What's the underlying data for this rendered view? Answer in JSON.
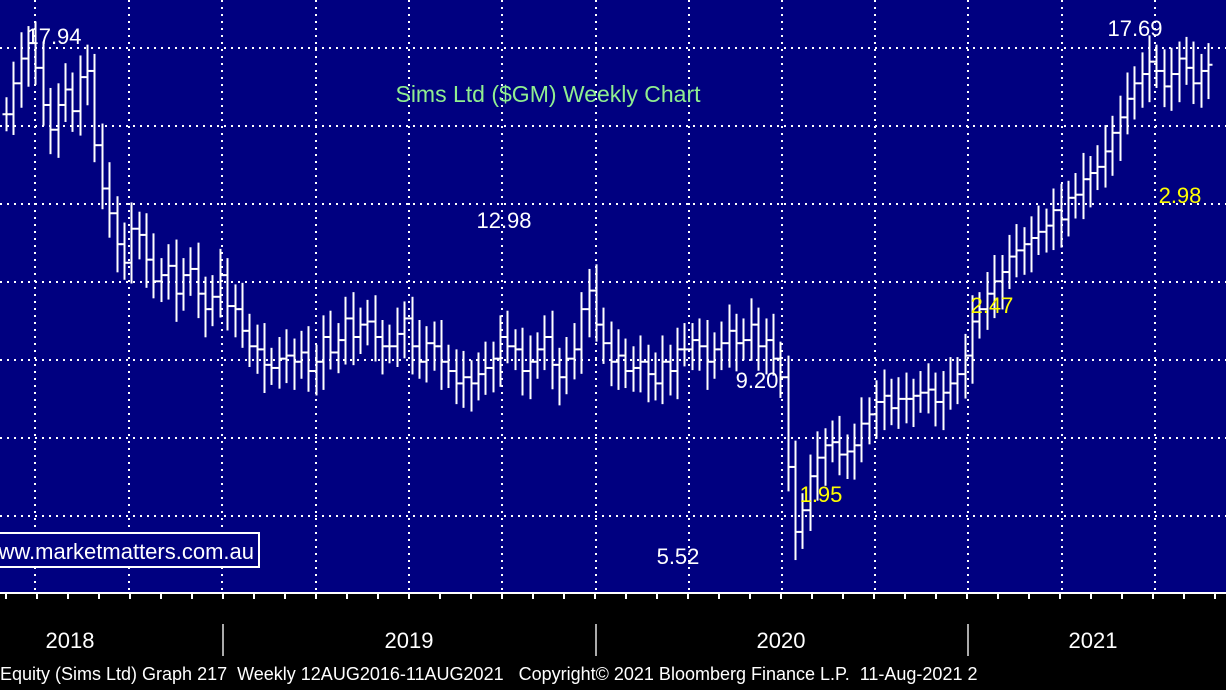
{
  "chart_data": {
    "type": "bar",
    "title": "Sims Ltd ($GM) Weekly Chart",
    "watermark": "www.marketmatters.com.au",
    "x_axis_labels": [
      "2018",
      "2019",
      "2020",
      "2021"
    ],
    "grid": true,
    "annotations": [
      {
        "text": "17.94",
        "color": "#ffffff"
      },
      {
        "text": "12.98",
        "color": "#ffffff"
      },
      {
        "text": "9.20",
        "color": "#ffffff"
      },
      {
        "text": "5.52",
        "color": "#ffffff"
      },
      {
        "text": "1.95",
        "color": "#ffff00"
      },
      {
        "text": "2.47",
        "color": "#ffff00"
      },
      {
        "text": "17.69",
        "color": "#ffffff"
      },
      {
        "text": "2.98",
        "color": "#ffff00"
      }
    ],
    "series": [
      {
        "values": [
          15.6,
          16.6,
          17.4,
          17.9,
          17.1,
          15.9,
          15.1,
          15.9,
          16.4,
          15.7,
          16.8,
          17.0,
          14.6,
          13.2,
          12.4,
          11.4,
          10.8,
          11.9,
          11.7,
          10.9,
          10.2,
          10.4,
          10.7,
          9.8,
          10.4,
          10.6,
          9.8,
          9.3,
          9.7,
          10.4,
          9.4,
          9.3,
          8.6,
          8.1,
          8.0,
          7.5,
          7.4,
          7.7,
          7.8,
          7.6,
          7.9,
          7.3,
          7.6,
          8.4,
          7.9,
          8.3,
          9.0,
          8.4,
          8.8,
          8.9,
          8.4,
          8.1,
          8.1,
          8.5,
          9.0,
          8.1,
          7.6,
          8.2,
          8.1,
          7.6,
          7.3,
          6.9,
          7.1,
          6.9,
          7.2,
          7.4,
          7.7,
          8.4,
          8.1,
          8.0,
          7.3,
          7.6,
          8.0,
          8.4,
          7.5,
          7.1,
          7.7,
          8.0,
          9.3,
          9.9,
          8.8,
          8.2,
          7.6,
          7.8,
          7.3,
          7.4,
          7.6,
          7.2,
          6.9,
          7.6,
          7.3,
          8.0,
          8.0,
          8.3,
          8.1,
          7.6,
          8.0,
          8.2,
          8.6,
          8.2,
          8.3,
          8.8,
          8.1,
          8.3,
          7.7,
          7.1,
          4.2,
          2.1,
          2.8,
          3.9,
          4.5,
          4.9,
          5.0,
          4.6,
          4.7,
          4.9,
          5.6,
          5.9,
          6.3,
          6.5,
          6.1,
          6.4,
          6.4,
          6.5,
          6.6,
          6.7,
          6.3,
          6.6,
          6.9,
          7.2,
          7.8,
          8.9,
          9.3,
          9.8,
          10.2,
          10.5,
          11.0,
          11.2,
          11.4,
          11.6,
          11.8,
          12.0,
          12.5,
          12.2,
          12.9,
          13.0,
          13.5,
          13.7,
          13.9,
          14.4,
          15.0,
          15.5,
          16.1,
          16.6,
          16.9,
          17.3,
          17.0,
          16.5,
          16.9,
          17.4,
          17.1,
          16.6,
          17.0,
          17.2
        ]
      }
    ]
  },
  "footer": {
    "text": "Equity (Sims Ltd) Graph 217  Weekly 12AUG2016-11AUG2021   Copyright© 2021 Bloomberg Finance L.P.  11-Aug-2021 2"
  },
  "colors": {
    "background": "#000000",
    "plot_background": "#000080",
    "grid": "#ffffff",
    "bars": "#ffffff",
    "title": "#90ee90",
    "annotation_white": "#ffffff",
    "annotation_yellow": "#ffff00"
  }
}
